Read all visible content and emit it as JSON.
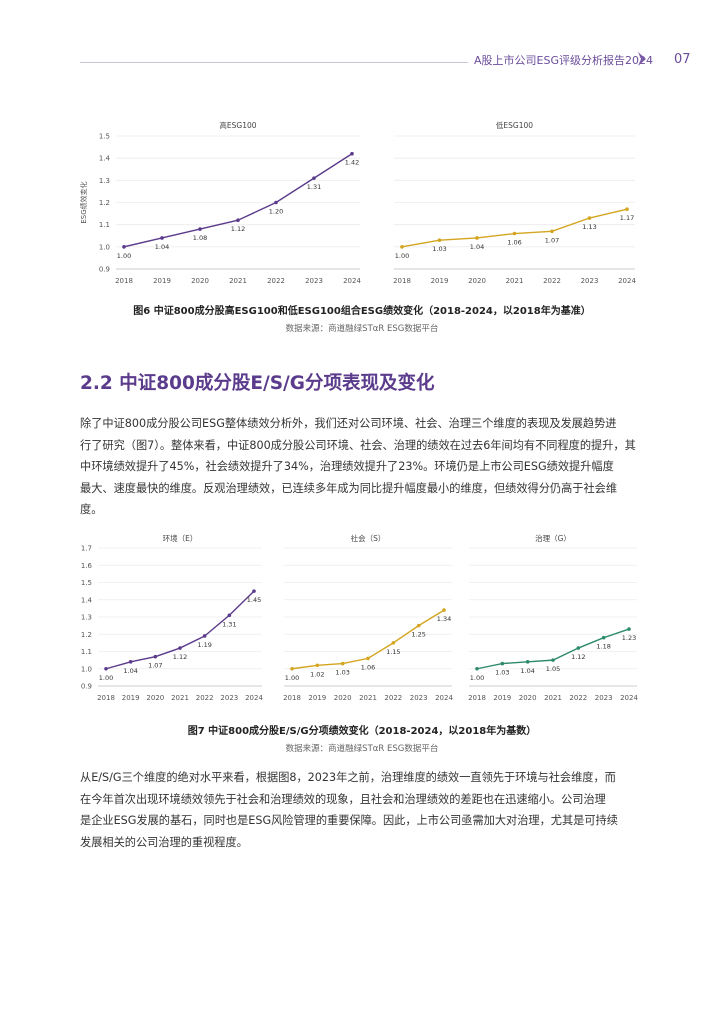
{
  "header": {
    "title": "A股上市公司ESG评级分析报告2024",
    "page_number": "07",
    "accent": "#6b4c9a"
  },
  "figure6": {
    "caption": "图6 中证800成分股高ESG100和低ESG100组合ESG绩效变化（2018-2024，以2018年为基准）",
    "source": "数据来源：商道融绿STαR ESG数据平台"
  },
  "section": {
    "title": "2.2 中证800成分股E/S/G分项表现及变化"
  },
  "paragraph1": [
    "除了中证800成分股公司ESG整体绩效分析外，我们还对公司环境、社会、治理三个维度的表现及发展趋势进",
    "行了研究（图7）。整体来看，中证800成分股公司环境、社会、治理的绩效在过去6年间均有不同程度的提升，其",
    "中环境绩效提升了45%，社会绩效提升了34%，治理绩效提升了23%。环境仍是上市公司ESG绩效提升幅度",
    "最大、速度最快的维度。反观治理绩效，已连续多年成为同比提升幅度最小的维度，但绩效得分仍高于社会维",
    "度。"
  ],
  "figure7": {
    "caption": "图7 中证800成分股E/S/G分项绩效变化（2018-2024，以2018年为基数）",
    "source": "数据来源：商道融绿STαR ESG数据平台"
  },
  "paragraph2": [
    "从E/S/G三个维度的绝对水平来看，根据图8，2023年之前，治理维度的绩效一直领先于环境与社会维度，而",
    "在今年首次出现环境绩效领先于社会和治理绩效的现象，且社会和治理绩效的差距也在迅速缩小。公司治理",
    "是企业ESG发展的基石，同时也是ESG风险管理的重要保障。因此，上市公司亟需加大对治理，尤其是可持续",
    "发展相关的公司治理的重视程度。"
  ],
  "chart_data": [
    {
      "type": "line",
      "title": "高ESG100",
      "ylabel": "ESG绩效变化",
      "x": [
        "2018",
        "2019",
        "2020",
        "2021",
        "2022",
        "2023",
        "2024"
      ],
      "yticks": [
        "0.9",
        "1.0",
        "1.1",
        "1.2",
        "1.3",
        "1.4",
        "1.5"
      ],
      "ylim": [
        0.9,
        1.5
      ],
      "series": [
        {
          "values": [
            1.0,
            1.04,
            1.08,
            1.12,
            1.2,
            1.31,
            1.42
          ],
          "labels": [
            "1.00",
            "1.04",
            "1.08",
            "1.12",
            "1.20",
            "1.31",
            "1.42"
          ],
          "color": "#5b3b8c"
        }
      ],
      "grid": true
    },
    {
      "type": "line",
      "title": "低ESG100",
      "x": [
        "2018",
        "2019",
        "2020",
        "2021",
        "2022",
        "2023",
        "2024"
      ],
      "ylim": [
        0.9,
        1.5
      ],
      "series": [
        {
          "values": [
            1.0,
            1.03,
            1.04,
            1.06,
            1.07,
            1.13,
            1.17
          ],
          "labels": [
            "1.00",
            "1.03",
            "1.04",
            "1.06",
            "1.07",
            "1.13",
            "1.17"
          ],
          "color": "#d4a520"
        }
      ],
      "grid": true
    },
    {
      "type": "line",
      "title": "环境（E）",
      "x": [
        "2018",
        "2019",
        "2020",
        "2021",
        "2022",
        "2023",
        "2024"
      ],
      "yticks": [
        "0.9",
        "1.0",
        "1.1",
        "1.2",
        "1.3",
        "1.4",
        "1.5",
        "1.6",
        "1.7"
      ],
      "ylim": [
        0.9,
        1.7
      ],
      "series": [
        {
          "values": [
            1.0,
            1.04,
            1.07,
            1.12,
            1.19,
            1.31,
            1.45
          ],
          "labels": [
            "1.00",
            "1.04",
            "1.07",
            "1.12",
            "1.19",
            "1.31",
            "1.45"
          ],
          "color": "#5b3b8c"
        }
      ],
      "grid": true
    },
    {
      "type": "line",
      "title": "社会（S）",
      "x": [
        "2018",
        "2019",
        "2020",
        "2021",
        "2022",
        "2023",
        "2024"
      ],
      "ylim": [
        0.9,
        1.7
      ],
      "series": [
        {
          "values": [
            1.0,
            1.02,
            1.03,
            1.06,
            1.15,
            1.25,
            1.34
          ],
          "labels": [
            "1.00",
            "1.02",
            "1.03",
            "1.06",
            "1.15",
            "1.25",
            "1.34"
          ],
          "color": "#d4a520"
        }
      ],
      "grid": true
    },
    {
      "type": "line",
      "title": "治理（G）",
      "x": [
        "2018",
        "2019",
        "2020",
        "2021",
        "2022",
        "2023",
        "2024"
      ],
      "ylim": [
        0.9,
        1.7
      ],
      "series": [
        {
          "values": [
            1.0,
            1.03,
            1.04,
            1.05,
            1.12,
            1.18,
            1.23
          ],
          "labels": [
            "1.00",
            "1.03",
            "1.04",
            "1.05",
            "1.12",
            "1.18",
            "1.23"
          ],
          "color": "#2e8b6a"
        }
      ],
      "grid": true
    }
  ]
}
